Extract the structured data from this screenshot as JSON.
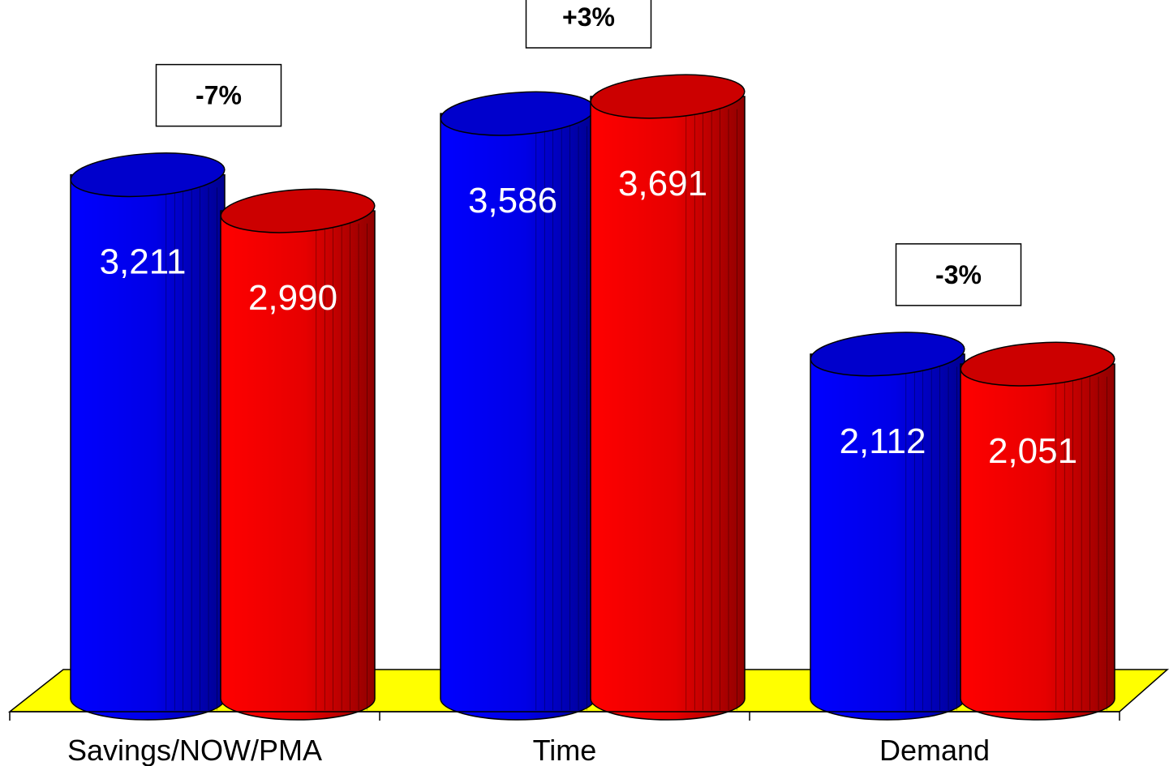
{
  "chart_data": {
    "type": "bar",
    "categories": [
      "Savings/NOW/PMA",
      "Time",
      "Demand"
    ],
    "series": [
      {
        "values": [
          3211,
          3586,
          2112
        ],
        "labels": [
          "3,211",
          "3,586",
          "2,112"
        ],
        "color": "#0000ff"
      },
      {
        "values": [
          2990,
          3691,
          2051
        ],
        "labels": [
          "2,990",
          "3,691",
          "2,051"
        ],
        "color": "#ff0000"
      }
    ],
    "changes": [
      "-7%",
      "+3%",
      "-3%"
    ],
    "floor_color": "#ffff00",
    "bar_shape": "cylinder",
    "grid": false,
    "legend": "none"
  }
}
